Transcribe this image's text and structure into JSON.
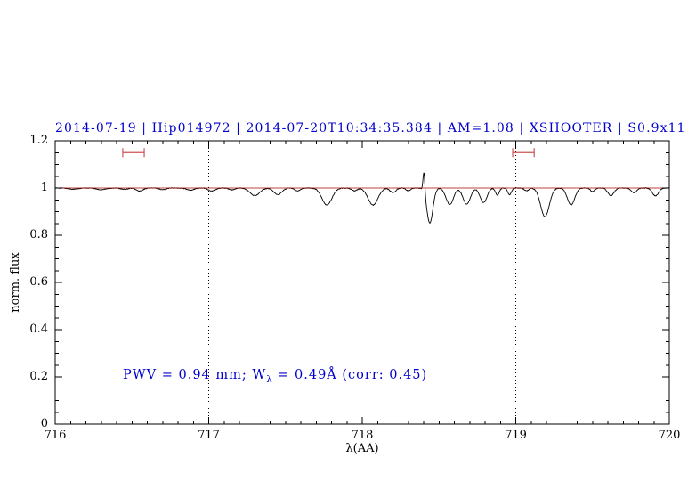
{
  "title": "2014-07-19 | Hip014972 | 2014-07-20T10:34:35.384 | AM=1.08 | XSHOOTER | S0.9x11",
  "annotation": {
    "part1": "PWV = 0.94 mm; W",
    "sub": "λ",
    "part2": " = 0.49Å (corr: 0.45)"
  },
  "colors": {
    "title": "#0000cd",
    "annotation": "#0000cd",
    "spectrum": "#000000",
    "continuum": "#aa0000",
    "markers": "#cc5555",
    "axis": "#000000"
  },
  "chart_data": {
    "type": "line",
    "title": "2014-07-19 | Hip014972 | 2014-07-20T10:34:35.384 | AM=1.08 | XSHOOTER | S0.9x11",
    "xlabel": "λ(AA)",
    "ylabel": "norm. flux",
    "xlim": [
      716,
      720
    ],
    "ylim": [
      0,
      1.2
    ],
    "xticks": [
      716,
      717,
      718,
      719,
      720
    ],
    "xtick_labels": [
      "716",
      "717",
      "718",
      "719",
      "720"
    ],
    "yticks": [
      0,
      0.2,
      0.4,
      0.6,
      0.8,
      1,
      1.2
    ],
    "ytick_labels": [
      "0",
      "0.2",
      "0.4",
      "0.6",
      "0.8",
      "1",
      "1.2"
    ],
    "minor_x_step": 0.1,
    "minor_y_step": 0.05,
    "vlines_dotted": [
      717,
      719
    ],
    "continuum_y": 1.0,
    "range_markers": [
      {
        "x1": 716.44,
        "x2": 716.58,
        "y": 1.15
      },
      {
        "x1": 718.98,
        "x2": 719.12,
        "y": 1.15
      }
    ],
    "spectrum": {
      "x_step": 0.003,
      "baseline": 1.0,
      "noise_amp": 0.0015,
      "features": [
        [
          716.12,
          0.005,
          0.03
        ],
        [
          716.3,
          0.007,
          0.03
        ],
        [
          716.45,
          0.006,
          0.02
        ],
        [
          716.55,
          0.013,
          0.022
        ],
        [
          716.7,
          0.007,
          0.02
        ],
        [
          716.88,
          0.009,
          0.025
        ],
        [
          717.02,
          0.013,
          0.022
        ],
        [
          717.15,
          0.008,
          0.018
        ],
        [
          717.3,
          0.032,
          0.032
        ],
        [
          717.45,
          0.028,
          0.026
        ],
        [
          717.58,
          0.012,
          0.018
        ],
        [
          717.77,
          0.072,
          0.032
        ],
        [
          717.95,
          0.012,
          0.018
        ],
        [
          718.07,
          0.072,
          0.032
        ],
        [
          718.2,
          0.02,
          0.018
        ],
        [
          718.3,
          0.012,
          0.014
        ],
        [
          718.402,
          -0.09,
          0.006
        ],
        [
          718.44,
          0.148,
          0.02
        ],
        [
          718.57,
          0.07,
          0.024
        ],
        [
          718.68,
          0.068,
          0.024
        ],
        [
          718.79,
          0.062,
          0.022
        ],
        [
          718.88,
          0.03,
          0.012
        ],
        [
          718.96,
          0.028,
          0.012
        ],
        [
          719.07,
          0.012,
          0.014
        ],
        [
          719.19,
          0.122,
          0.028
        ],
        [
          719.36,
          0.072,
          0.024
        ],
        [
          719.5,
          0.015,
          0.014
        ],
        [
          719.62,
          0.032,
          0.02
        ],
        [
          719.77,
          0.02,
          0.018
        ],
        [
          719.91,
          0.033,
          0.02
        ]
      ]
    }
  }
}
